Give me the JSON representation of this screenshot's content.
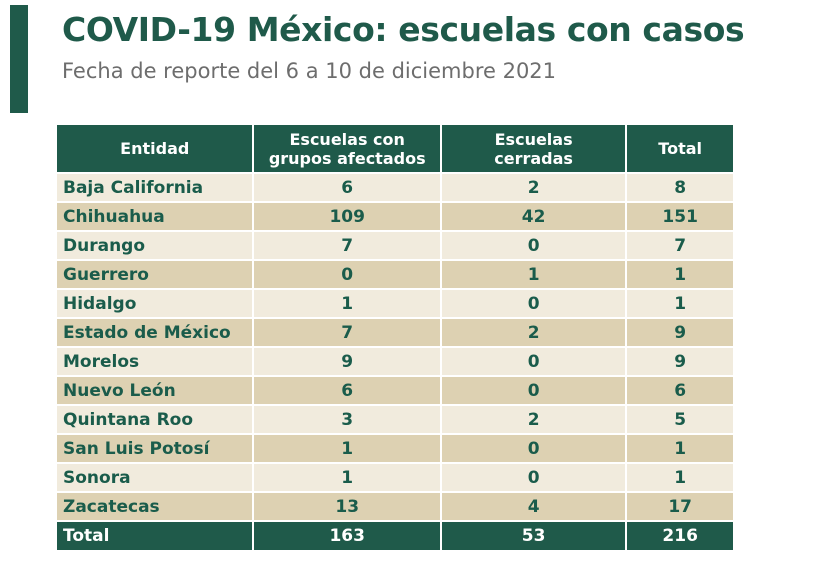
{
  "header": {
    "title": "COVID-19 México: escuelas con casos",
    "subtitle": "Fecha de reporte del 6 a 10 de diciembre 2021"
  },
  "colors": {
    "header_green": "#1f5a4a",
    "row_light": "#f1ebdd",
    "row_dark": "#ddd1b2",
    "text_green": "#1a5c4b"
  },
  "table": {
    "headers": {
      "entidad": "Entidad",
      "afectados_line1": "Escuelas con",
      "afectados_line2": "grupos afectados",
      "cerradas_line1": "Escuelas",
      "cerradas_line2": "cerradas",
      "total": "Total"
    },
    "rows": [
      {
        "entidad": "Baja California",
        "afectados": "6",
        "cerradas": "2",
        "total": "8"
      },
      {
        "entidad": "Chihuahua",
        "afectados": "109",
        "cerradas": "42",
        "total": "151"
      },
      {
        "entidad": "Durango",
        "afectados": "7",
        "cerradas": "0",
        "total": "7"
      },
      {
        "entidad": "Guerrero",
        "afectados": "0",
        "cerradas": "1",
        "total": "1"
      },
      {
        "entidad": "Hidalgo",
        "afectados": "1",
        "cerradas": "0",
        "total": "1"
      },
      {
        "entidad": "Estado de México",
        "afectados": "7",
        "cerradas": "2",
        "total": "9"
      },
      {
        "entidad": "Morelos",
        "afectados": "9",
        "cerradas": "0",
        "total": "9"
      },
      {
        "entidad": "Nuevo León",
        "afectados": "6",
        "cerradas": "0",
        "total": "6"
      },
      {
        "entidad": "Quintana Roo",
        "afectados": "3",
        "cerradas": "2",
        "total": "5"
      },
      {
        "entidad": "San Luis Potosí",
        "afectados": "1",
        "cerradas": "0",
        "total": "1"
      },
      {
        "entidad": "Sonora",
        "afectados": "1",
        "cerradas": "0",
        "total": "1"
      },
      {
        "entidad": "Zacatecas",
        "afectados": "13",
        "cerradas": "4",
        "total": "17"
      }
    ],
    "footer": {
      "entidad": "Total",
      "afectados": "163",
      "cerradas": "53",
      "total": "216"
    }
  }
}
